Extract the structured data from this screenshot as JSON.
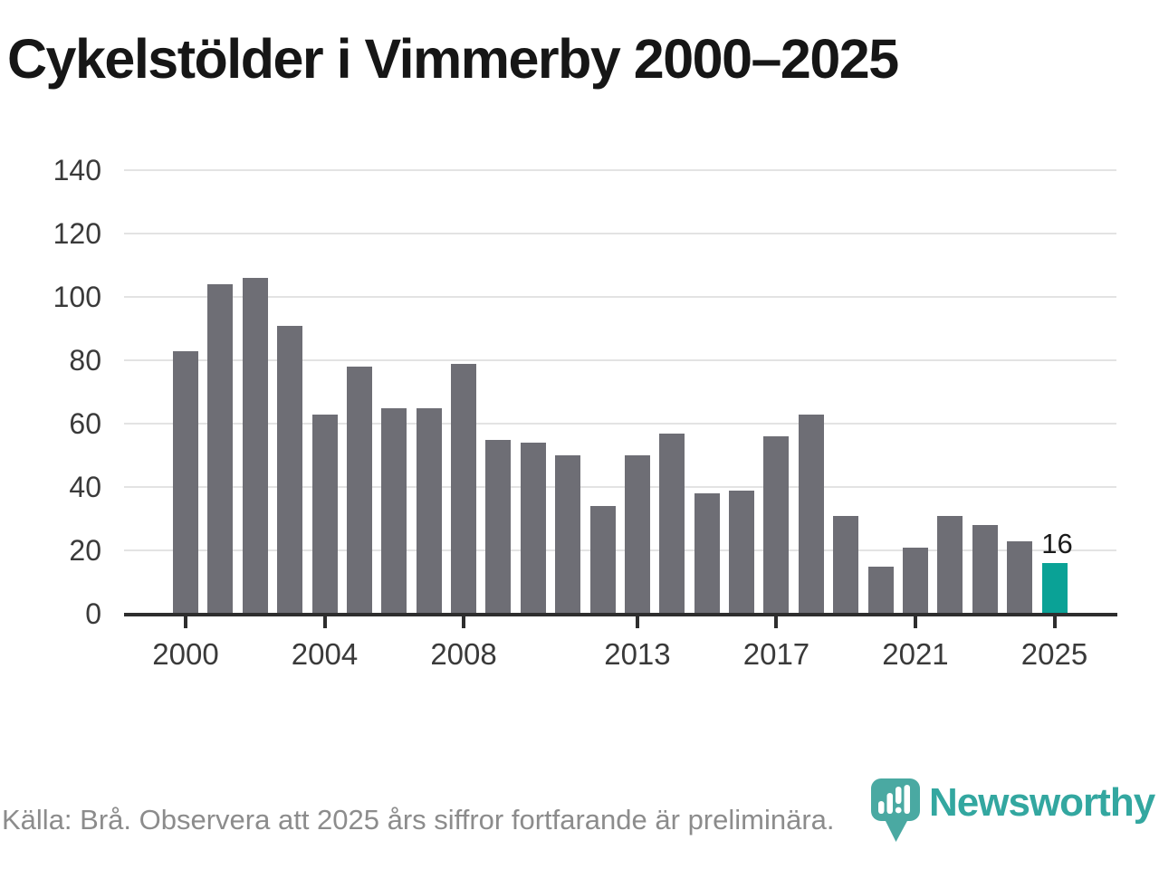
{
  "title": "Cykelstölder i Vimmerby 2000–2025",
  "footer": {
    "source_note": "Källa: Brå. Observera att 2025 års siffror fortfarande är preliminära."
  },
  "logo": {
    "brand": "Newsworthy"
  },
  "colors": {
    "bar_default": "#6e6e75",
    "bar_highlight": "#0aa296",
    "axis": "#2e2e2e",
    "gridline": "#e3e3e3",
    "axis_label": "#3a3a3a",
    "title_text": "#161616",
    "data_label": "#1a1a1a",
    "footer_text": "#8c8c8c",
    "logo_teal": "#33a7a0",
    "logo_icon_teal": "#4aa9a2"
  },
  "chart_data": {
    "type": "bar",
    "title": "Cykelstölder i Vimmerby 2000–2025",
    "x": [
      2000,
      2001,
      2002,
      2003,
      2004,
      2005,
      2006,
      2007,
      2008,
      2009,
      2010,
      2011,
      2012,
      2013,
      2014,
      2015,
      2016,
      2017,
      2018,
      2019,
      2020,
      2021,
      2022,
      2023,
      2024,
      2025
    ],
    "values": [
      83,
      104,
      106,
      91,
      63,
      78,
      65,
      65,
      79,
      55,
      54,
      50,
      34,
      50,
      57,
      38,
      39,
      56,
      63,
      31,
      15,
      21,
      31,
      28,
      23,
      16
    ],
    "highlight_year": 2025,
    "highlighted_value_label": "16",
    "xlabel": "",
    "ylabel": "",
    "ylim": [
      0,
      140
    ],
    "yticks": [
      0,
      20,
      40,
      60,
      80,
      100,
      120,
      140
    ],
    "xticks": [
      2000,
      2004,
      2008,
      2013,
      2017,
      2021,
      2025
    ],
    "grid": "horizontal",
    "legend": "none"
  }
}
